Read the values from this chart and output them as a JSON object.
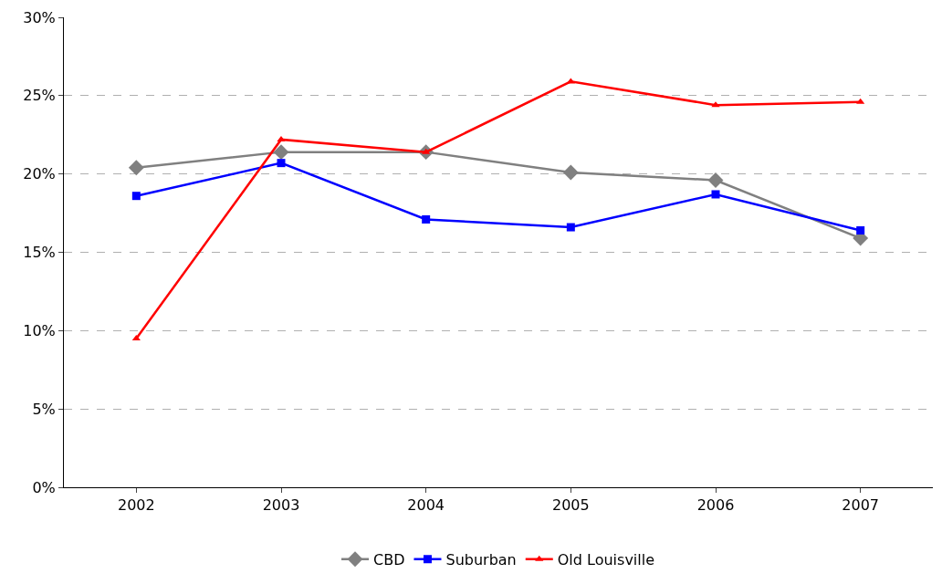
{
  "chart_data": {
    "type": "line",
    "categories": [
      "2002",
      "2003",
      "2004",
      "2005",
      "2006",
      "2007"
    ],
    "series": [
      {
        "name": "CBD",
        "color": "#808080",
        "marker": "diamond",
        "values": [
          20.4,
          21.4,
          21.4,
          20.1,
          19.6,
          15.9
        ]
      },
      {
        "name": "Suburban",
        "color": "#0000ff",
        "marker": "square",
        "values": [
          18.6,
          20.7,
          17.1,
          16.6,
          18.7,
          16.4
        ]
      },
      {
        "name": "Old Louisville",
        "color": "#ff0000",
        "marker": "triangle",
        "values": [
          9.5,
          22.2,
          21.4,
          25.9,
          24.4,
          24.6
        ]
      }
    ],
    "ylim": [
      0,
      30
    ],
    "yticks": [
      {
        "value": 0,
        "label": "0%"
      },
      {
        "value": 5,
        "label": "5%"
      },
      {
        "value": 10,
        "label": "10%"
      },
      {
        "value": 15,
        "label": "15%"
      },
      {
        "value": 20,
        "label": "20%"
      },
      {
        "value": 25,
        "label": "25%"
      },
      {
        "value": 30,
        "label": "30%"
      }
    ],
    "grid": "y",
    "legend": "bottom"
  }
}
